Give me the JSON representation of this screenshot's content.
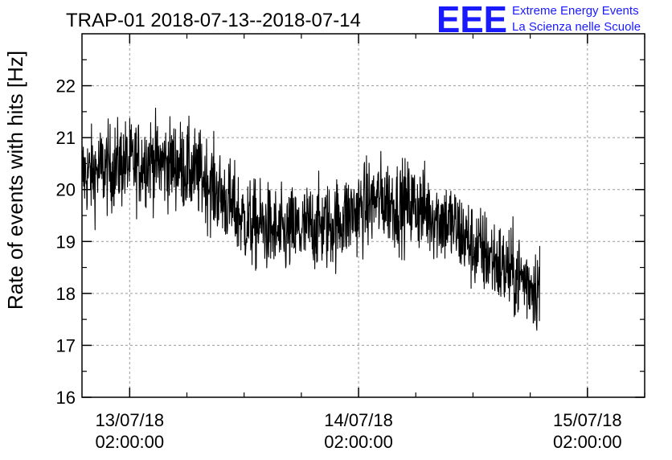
{
  "chart_data": {
    "type": "line",
    "title": "TRAP-01 2018-07-13--2018-07-14",
    "xlabel": "",
    "ylabel": "Rate of events with hits [Hz]",
    "logo": {
      "mark": "EEE",
      "line1": "Extreme Energy Events",
      "line2": "La Scienza nelle Scuole"
    },
    "xlim": [
      "2018-07-12T21:00:00",
      "2018-07-15T08:00:00"
    ],
    "ylim": [
      16,
      23
    ],
    "yticks": [
      16,
      17,
      18,
      19,
      20,
      21,
      22
    ],
    "xticks": [
      {
        "at": "2018-07-13T02:00:00",
        "date": "13/07/18",
        "time": "02:00:00"
      },
      {
        "at": "2018-07-14T02:00:00",
        "date": "14/07/18",
        "time": "02:00:00"
      },
      {
        "at": "2018-07-15T02:00:00",
        "date": "15/07/18",
        "time": "02:00:00"
      }
    ],
    "grid": true,
    "series": [
      {
        "color": "#000000",
        "x": [
          "2018-07-12T21:00:00",
          "2018-07-12T22:00:00",
          "2018-07-12T23:00:00",
          "2018-07-13T00:00:00",
          "2018-07-13T01:00:00",
          "2018-07-13T02:00:00",
          "2018-07-13T03:00:00",
          "2018-07-13T04:00:00",
          "2018-07-13T05:00:00",
          "2018-07-13T06:00:00",
          "2018-07-13T07:00:00",
          "2018-07-13T08:00:00",
          "2018-07-13T09:00:00",
          "2018-07-13T10:00:00",
          "2018-07-13T11:00:00",
          "2018-07-13T12:00:00",
          "2018-07-13T13:00:00",
          "2018-07-13T14:00:00",
          "2018-07-13T15:00:00",
          "2018-07-13T16:00:00",
          "2018-07-13T17:00:00",
          "2018-07-13T18:00:00",
          "2018-07-13T19:00:00",
          "2018-07-13T20:00:00",
          "2018-07-13T21:00:00",
          "2018-07-13T22:00:00",
          "2018-07-13T23:00:00",
          "2018-07-14T00:00:00",
          "2018-07-14T01:00:00",
          "2018-07-14T02:00:00",
          "2018-07-14T03:00:00",
          "2018-07-14T04:00:00",
          "2018-07-14T05:00:00",
          "2018-07-14T06:00:00",
          "2018-07-14T07:00:00",
          "2018-07-14T08:00:00",
          "2018-07-14T09:00:00",
          "2018-07-14T10:00:00",
          "2018-07-14T11:00:00",
          "2018-07-14T12:00:00",
          "2018-07-14T13:00:00",
          "2018-07-14T14:00:00",
          "2018-07-14T15:00:00",
          "2018-07-14T16:00:00",
          "2018-07-14T17:00:00",
          "2018-07-14T18:00:00",
          "2018-07-14T19:00:00",
          "2018-07-14T20:00:00",
          "2018-07-14T21:00:00"
        ],
        "y": [
          20.3,
          20.3,
          20.4,
          20.4,
          20.5,
          20.5,
          20.5,
          20.6,
          20.5,
          20.5,
          20.5,
          20.4,
          20.3,
          20.2,
          20.0,
          19.8,
          19.6,
          19.4,
          19.3,
          19.3,
          19.2,
          19.1,
          19.2,
          19.2,
          19.3,
          19.3,
          19.3,
          19.4,
          19.5,
          19.6,
          19.7,
          19.8,
          19.8,
          19.7,
          19.7,
          19.7,
          19.6,
          19.5,
          19.4,
          19.3,
          19.1,
          18.9,
          18.8,
          18.7,
          18.5,
          18.4,
          18.3,
          18.2,
          18.1
        ]
      }
    ]
  }
}
